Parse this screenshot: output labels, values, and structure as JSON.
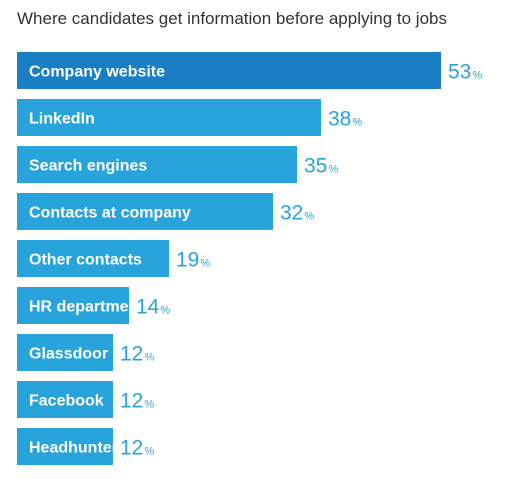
{
  "chart_data": {
    "type": "bar",
    "orientation": "horizontal",
    "title": "Where candidates get information before applying to jobs",
    "categories": [
      "Company website",
      "LinkedIn",
      "Search engines",
      "Contacts at company",
      "Other contacts",
      "HR department",
      "Glassdoor",
      "Facebook",
      "Headhunter"
    ],
    "values": [
      53,
      38,
      35,
      32,
      19,
      14,
      12,
      12,
      12
    ],
    "value_suffix": "%",
    "xlim": [
      0,
      53
    ],
    "grid": false,
    "legend": "none",
    "colors": {
      "highlight_bar": "#1a7ec4",
      "bar": "#29a3dc",
      "value_text": "#29a3dc",
      "title_text": "#333333",
      "label_text": "#ffffff"
    }
  }
}
